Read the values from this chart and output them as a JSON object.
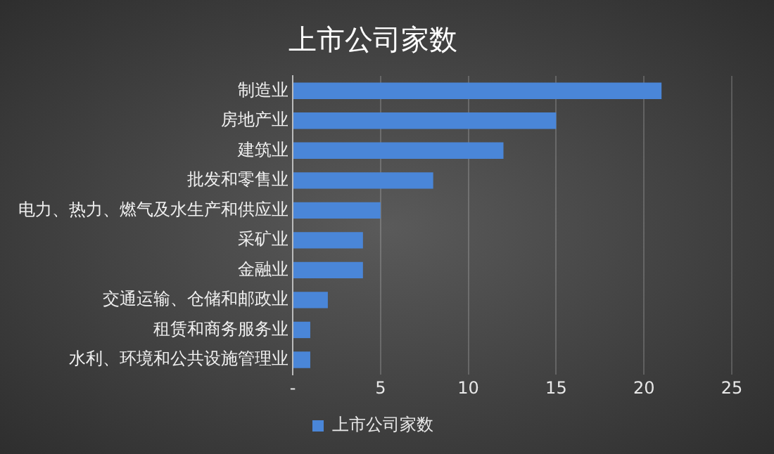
{
  "chart_data": {
    "type": "bar",
    "orientation": "horizontal",
    "title": "上市公司家数",
    "categories": [
      "制造业",
      "房地产业",
      "建筑业",
      "批发和零售业",
      "电力、热力、燃气及水生产和供应业",
      "采矿业",
      "金融业",
      "交通运输、仓储和邮政业",
      "租赁和商务服务业",
      "水利、环境和公共设施管理业"
    ],
    "series": [
      {
        "name": "上市公司家数",
        "color": "#4a86d8",
        "values": [
          21,
          15,
          12,
          8,
          5,
          4,
          4,
          2,
          1,
          1
        ]
      }
    ],
    "xlim": [
      0,
      25
    ],
    "xticks": [
      {
        "value": 0,
        "label": "-"
      },
      5,
      10,
      15,
      20,
      25
    ],
    "grid": "x",
    "legend": "bottom"
  }
}
